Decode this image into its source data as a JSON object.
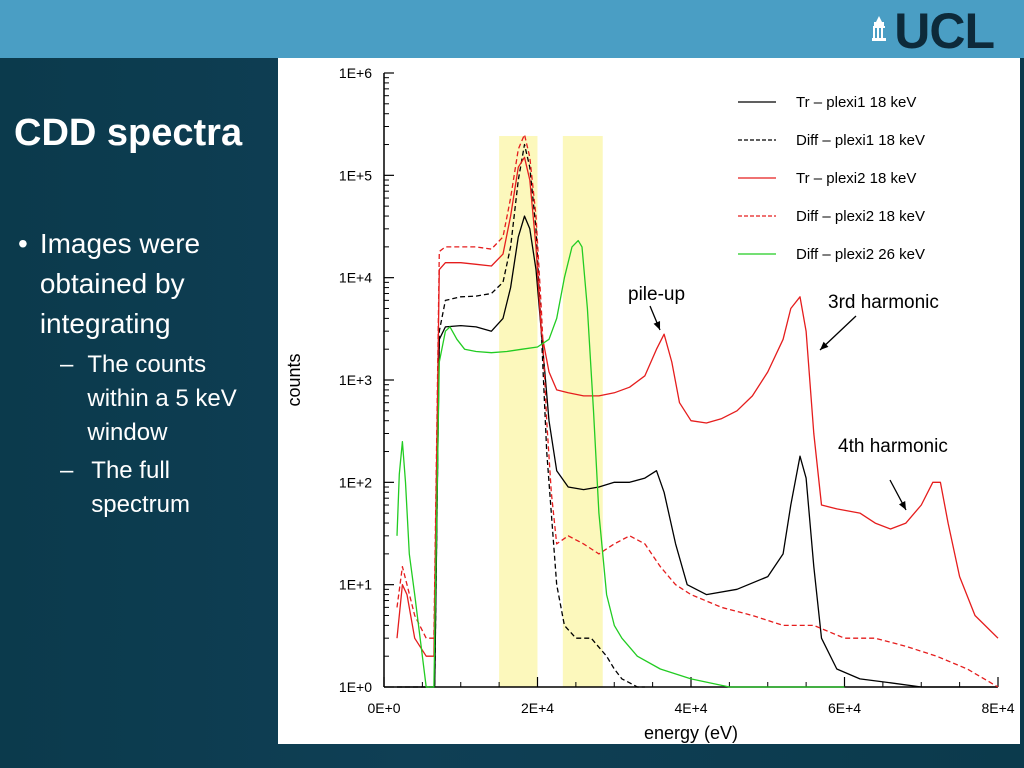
{
  "header": {
    "logo_text": "UCL",
    "logo_icon": "ucl-portico-icon"
  },
  "slide": {
    "title": "CDD spectra",
    "bullet": {
      "marker": "•",
      "text": "Images were obtained by integrating"
    },
    "sub_bullets": [
      {
        "marker": "–",
        "text": "The counts within a 5 keV window"
      },
      {
        "marker": "–",
        "text": "The full spectrum"
      }
    ]
  },
  "chart_data": {
    "type": "line",
    "xlabel": "energy (eV)",
    "ylabel": "counts",
    "xlim": [
      0,
      80000
    ],
    "ylim": [
      1,
      1000000
    ],
    "yscale": "log",
    "xticks": [
      {
        "value": 0,
        "label": "0E+0"
      },
      {
        "value": 20000,
        "label": "2E+4"
      },
      {
        "value": 40000,
        "label": "4E+4"
      },
      {
        "value": 60000,
        "label": "6E+4"
      },
      {
        "value": 80000,
        "label": "8E+4"
      }
    ],
    "yticks": [
      {
        "value": 1,
        "label": "1E+0"
      },
      {
        "value": 10,
        "label": "1E+1"
      },
      {
        "value": 100,
        "label": "1E+2"
      },
      {
        "value": 1000,
        "label": "1E+3"
      },
      {
        "value": 10000,
        "label": "1E+4"
      },
      {
        "value": 100000,
        "label": "1E+5"
      },
      {
        "value": 1000000,
        "label": "1E+6"
      }
    ],
    "legend_position": "top-right",
    "highlight_windows": [
      {
        "x0": 15000,
        "x1": 20000,
        "color": "#fbf7b0"
      },
      {
        "x0": 23300,
        "x1": 28500,
        "color": "#fbf7b0"
      }
    ],
    "series": [
      {
        "name": "Tr – plexi1 18 keV",
        "color": "#000000",
        "dash": "solid",
        "x": [
          1700,
          3000,
          5000,
          6600,
          7200,
          8000,
          10000,
          12000,
          14000,
          15500,
          16500,
          17500,
          18300,
          19000,
          19800,
          20500,
          21500,
          22500,
          24000,
          26000,
          28000,
          30000,
          32000,
          34000,
          35500,
          36500,
          38000,
          39500,
          42000,
          46000,
          50000,
          52000,
          53000,
          54200,
          55000,
          56000,
          57000,
          59000,
          62000,
          66000,
          70000,
          75000,
          80000
        ],
        "y": [
          1,
          1,
          1,
          1,
          2500,
          3300,
          3400,
          3300,
          3000,
          4000,
          8000,
          25000,
          40000,
          30000,
          12000,
          3000,
          400,
          130,
          90,
          85,
          90,
          100,
          100,
          110,
          130,
          80,
          25,
          10,
          8,
          9,
          12,
          20,
          60,
          180,
          110,
          15,
          3,
          1.5,
          1.2,
          1.1,
          1,
          1,
          1
        ]
      },
      {
        "name": "Diff – plexi1 18 keV",
        "color": "#000000",
        "dash": "dashed",
        "x": [
          1700,
          3000,
          5000,
          6600,
          7200,
          8000,
          10000,
          12000,
          14000,
          15500,
          16500,
          17500,
          18300,
          19000,
          19800,
          20500,
          21200,
          21800,
          22500,
          23500,
          25000,
          27000,
          29000,
          30000,
          31000,
          32000,
          33000,
          34000
        ],
        "y": [
          1,
          1,
          1,
          1,
          3000,
          6000,
          6500,
          6600,
          7000,
          9000,
          20000,
          90000,
          200000,
          120000,
          30000,
          3000,
          200,
          50,
          10,
          4,
          3,
          3,
          2,
          1.5,
          1.2,
          1.1,
          1,
          1
        ]
      },
      {
        "name": "Tr – plexi2 18 keV",
        "color": "#e51d1d",
        "dash": "solid",
        "x": [
          1700,
          2400,
          3000,
          4000,
          5500,
          6500,
          7200,
          8000,
          10000,
          12000,
          14000,
          15500,
          16500,
          17500,
          18300,
          19000,
          19800,
          20500,
          21500,
          22500,
          24000,
          26000,
          28000,
          30000,
          32000,
          34000,
          35500,
          36500,
          37500,
          38500,
          40000,
          42000,
          44000,
          46000,
          48000,
          50000,
          52000,
          53000,
          54200,
          55000,
          56000,
          57000,
          59000,
          62000,
          64000,
          66000,
          68000,
          70000,
          71500,
          72500,
          73500,
          75000,
          77000,
          80000
        ],
        "y": [
          3,
          10,
          8,
          3,
          2,
          2,
          12000,
          14000,
          14000,
          13500,
          13000,
          17000,
          40000,
          120000,
          150000,
          90000,
          20000,
          3000,
          1200,
          800,
          750,
          700,
          700,
          750,
          850,
          1100,
          2000,
          2800,
          1500,
          600,
          400,
          380,
          420,
          500,
          700,
          1200,
          2500,
          5000,
          6500,
          3000,
          300,
          60,
          55,
          50,
          40,
          35,
          40,
          60,
          100,
          100,
          40,
          12,
          5,
          3
        ]
      },
      {
        "name": "Diff – plexi2 18 keV",
        "color": "#e51d1d",
        "dash": "dashed",
        "x": [
          1700,
          2400,
          3000,
          4000,
          5500,
          6500,
          7200,
          8000,
          10000,
          12000,
          14000,
          15500,
          16500,
          17500,
          18300,
          19000,
          19800,
          20500,
          21200,
          21800,
          22500,
          24000,
          26000,
          28000,
          30000,
          32000,
          34000,
          36000,
          38000,
          40000,
          44000,
          48000,
          52000,
          56000,
          60000,
          64000,
          68000,
          72000,
          76000,
          80000
        ],
        "y": [
          6,
          15,
          10,
          5,
          3,
          3,
          18000,
          20000,
          20000,
          20000,
          19000,
          25000,
          60000,
          180000,
          250000,
          150000,
          40000,
          5000,
          400,
          80,
          25,
          30,
          25,
          20,
          25,
          30,
          25,
          15,
          10,
          8,
          6,
          5,
          4,
          4,
          3,
          3,
          2.5,
          2,
          1.5,
          1
        ]
      },
      {
        "name": "Diff – plexi2 26 keV",
        "color": "#22cc22",
        "dash": "solid",
        "x": [
          1700,
          2000,
          2400,
          2800,
          3300,
          4000,
          5500,
          6500,
          7200,
          8000,
          8600,
          9500,
          10500,
          12000,
          14000,
          16000,
          18000,
          20000,
          21500,
          22500,
          23500,
          24500,
          25300,
          25800,
          26500,
          27300,
          28000,
          29000,
          30000,
          31000,
          33000,
          36000,
          40000,
          45000,
          50000,
          55000,
          60000
        ],
        "y": [
          30,
          120,
          250,
          100,
          20,
          8,
          1,
          1,
          1500,
          3000,
          3300,
          2500,
          2000,
          1900,
          1850,
          1900,
          2000,
          2100,
          2500,
          4000,
          10000,
          20000,
          23000,
          20000,
          5000,
          500,
          50,
          8,
          4,
          3,
          2,
          1.5,
          1.2,
          1,
          1,
          1,
          1
        ]
      }
    ],
    "annotations": [
      {
        "text": "pile-up",
        "x": 36000,
        "y": 2800
      },
      {
        "text": "3rd harmonic",
        "x": 54500,
        "y": 6500
      },
      {
        "text": "4th harmonic",
        "x": 71000,
        "y": 100
      }
    ]
  }
}
